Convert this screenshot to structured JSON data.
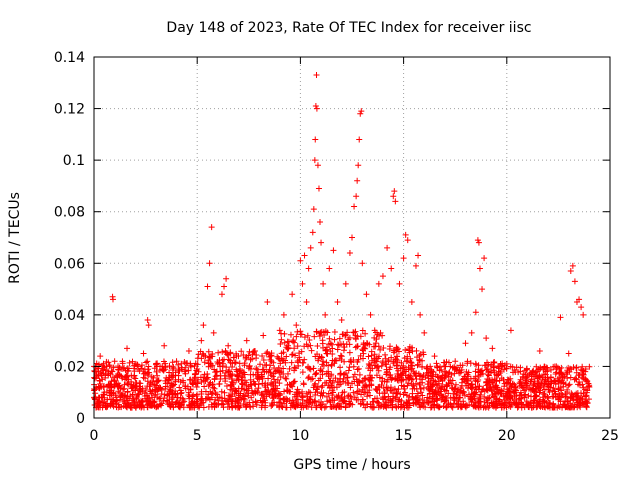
{
  "chart_data": {
    "type": "scatter",
    "title": "Day 148 of 2023, Rate Of TEC Index for receiver iisc",
    "xlabel": "GPS time / hours",
    "ylabel": "ROTI / TECUs",
    "xlim": [
      0,
      25
    ],
    "ylim": [
      0,
      0.14
    ],
    "x_ticks": [
      0,
      5,
      10,
      15,
      20,
      25
    ],
    "x_tick_labels": [
      "0",
      "5",
      "10",
      "15",
      "20",
      "25"
    ],
    "y_ticks": [
      0,
      0.02,
      0.04,
      0.06,
      0.08,
      0.1,
      0.12,
      0.14
    ],
    "y_tick_labels": [
      "0",
      "0.02",
      "0.04",
      "0.06",
      "0.08",
      "0.1",
      "0.12",
      "0.14"
    ],
    "grid": true,
    "marker": "+",
    "color": "#ff0000",
    "series": [
      {
        "name": "ROTI",
        "points": [
          [
            0.0,
            0.008
          ],
          [
            0.1,
            0.012
          ],
          [
            0.2,
            0.018
          ],
          [
            0.3,
            0.024
          ],
          [
            0.4,
            0.015
          ],
          [
            0.5,
            0.01
          ],
          [
            0.6,
            0.02
          ],
          [
            0.7,
            0.013
          ],
          [
            0.8,
            0.017
          ],
          [
            0.9,
            0.047
          ],
          [
            0.92,
            0.046
          ],
          [
            1.0,
            0.022
          ],
          [
            1.2,
            0.012
          ],
          [
            1.4,
            0.019
          ],
          [
            1.6,
            0.027
          ],
          [
            1.8,
            0.014
          ],
          [
            2.0,
            0.021
          ],
          [
            2.2,
            0.011
          ],
          [
            2.4,
            0.025
          ],
          [
            2.6,
            0.038
          ],
          [
            2.65,
            0.036
          ],
          [
            2.8,
            0.016
          ],
          [
            3.0,
            0.012
          ],
          [
            3.2,
            0.02
          ],
          [
            3.4,
            0.028
          ],
          [
            3.6,
            0.015
          ],
          [
            3.8,
            0.01
          ],
          [
            4.0,
            0.022
          ],
          [
            4.2,
            0.014
          ],
          [
            4.4,
            0.018
          ],
          [
            4.6,
            0.026
          ],
          [
            4.8,
            0.013
          ],
          [
            5.0,
            0.019
          ],
          [
            5.2,
            0.03
          ],
          [
            5.3,
            0.036
          ],
          [
            5.4,
            0.024
          ],
          [
            5.5,
            0.051
          ],
          [
            5.6,
            0.06
          ],
          [
            5.7,
            0.074
          ],
          [
            5.8,
            0.033
          ],
          [
            6.0,
            0.021
          ],
          [
            6.2,
            0.048
          ],
          [
            6.3,
            0.051
          ],
          [
            6.4,
            0.054
          ],
          [
            6.5,
            0.028
          ],
          [
            6.7,
            0.017
          ],
          [
            7.0,
            0.024
          ],
          [
            7.2,
            0.013
          ],
          [
            7.4,
            0.03
          ],
          [
            7.6,
            0.019
          ],
          [
            7.8,
            0.026
          ],
          [
            8.0,
            0.015
          ],
          [
            8.2,
            0.032
          ],
          [
            8.4,
            0.045
          ],
          [
            8.6,
            0.022
          ],
          [
            8.8,
            0.018
          ],
          [
            9.0,
            0.034
          ],
          [
            9.2,
            0.04
          ],
          [
            9.4,
            0.028
          ],
          [
            9.6,
            0.048
          ],
          [
            9.8,
            0.036
          ],
          [
            10.0,
            0.061
          ],
          [
            10.1,
            0.052
          ],
          [
            10.2,
            0.063
          ],
          [
            10.3,
            0.045
          ],
          [
            10.4,
            0.058
          ],
          [
            10.5,
            0.066
          ],
          [
            10.6,
            0.072
          ],
          [
            10.65,
            0.081
          ],
          [
            10.7,
            0.1
          ],
          [
            10.72,
            0.108
          ],
          [
            10.75,
            0.121
          ],
          [
            10.78,
            0.133
          ],
          [
            10.8,
            0.12
          ],
          [
            10.85,
            0.098
          ],
          [
            10.9,
            0.089
          ],
          [
            10.95,
            0.076
          ],
          [
            11.0,
            0.068
          ],
          [
            11.1,
            0.052
          ],
          [
            11.2,
            0.04
          ],
          [
            11.4,
            0.058
          ],
          [
            11.6,
            0.065
          ],
          [
            11.8,
            0.045
          ],
          [
            12.0,
            0.038
          ],
          [
            12.2,
            0.052
          ],
          [
            12.4,
            0.064
          ],
          [
            12.5,
            0.07
          ],
          [
            12.6,
            0.082
          ],
          [
            12.7,
            0.086
          ],
          [
            12.75,
            0.092
          ],
          [
            12.8,
            0.098
          ],
          [
            12.85,
            0.108
          ],
          [
            12.9,
            0.118
          ],
          [
            12.95,
            0.119
          ],
          [
            13.0,
            0.06
          ],
          [
            13.2,
            0.048
          ],
          [
            13.4,
            0.04
          ],
          [
            13.6,
            0.034
          ],
          [
            13.8,
            0.052
          ],
          [
            14.0,
            0.055
          ],
          [
            14.2,
            0.066
          ],
          [
            14.4,
            0.058
          ],
          [
            14.5,
            0.086
          ],
          [
            14.55,
            0.088
          ],
          [
            14.6,
            0.084
          ],
          [
            14.8,
            0.052
          ],
          [
            15.0,
            0.062
          ],
          [
            15.1,
            0.071
          ],
          [
            15.2,
            0.069
          ],
          [
            15.4,
            0.045
          ],
          [
            15.6,
            0.059
          ],
          [
            15.7,
            0.063
          ],
          [
            15.8,
            0.04
          ],
          [
            16.0,
            0.033
          ],
          [
            16.5,
            0.024
          ],
          [
            17.0,
            0.018
          ],
          [
            17.5,
            0.022
          ],
          [
            18.0,
            0.029
          ],
          [
            18.3,
            0.033
          ],
          [
            18.5,
            0.041
          ],
          [
            18.6,
            0.069
          ],
          [
            18.65,
            0.068
          ],
          [
            18.7,
            0.058
          ],
          [
            18.8,
            0.05
          ],
          [
            18.9,
            0.062
          ],
          [
            19.0,
            0.031
          ],
          [
            19.3,
            0.027
          ],
          [
            19.6,
            0.018
          ],
          [
            20.0,
            0.021
          ],
          [
            20.2,
            0.034
          ],
          [
            20.4,
            0.012
          ],
          [
            20.8,
            0.017
          ],
          [
            21.2,
            0.015
          ],
          [
            21.6,
            0.026
          ],
          [
            22.0,
            0.013
          ],
          [
            22.4,
            0.02
          ],
          [
            22.6,
            0.039
          ],
          [
            22.8,
            0.016
          ],
          [
            23.0,
            0.025
          ],
          [
            23.1,
            0.057
          ],
          [
            23.2,
            0.059
          ],
          [
            23.3,
            0.053
          ],
          [
            23.4,
            0.045
          ],
          [
            23.5,
            0.046
          ],
          [
            23.6,
            0.043
          ],
          [
            23.7,
            0.04
          ],
          [
            23.8,
            0.018
          ],
          [
            24.0,
            0.012
          ]
        ]
      }
    ]
  }
}
